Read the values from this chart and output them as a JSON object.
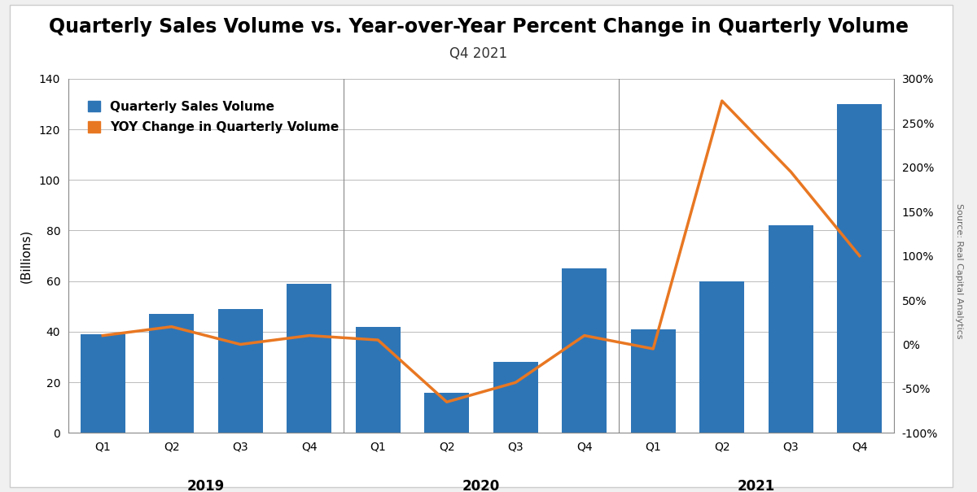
{
  "title": "Quarterly Sales Volume vs. Year-over-Year Percent Change in Quarterly Volume",
  "subtitle": "Q4 2021",
  "source": "Source: Real Capital Analytics",
  "categories": [
    "Q1",
    "Q2",
    "Q3",
    "Q4",
    "Q1",
    "Q2",
    "Q3",
    "Q4",
    "Q1",
    "Q2",
    "Q3",
    "Q4"
  ],
  "year_labels": [
    "2019",
    "2020",
    "2021"
  ],
  "bar_values": [
    39,
    47,
    49,
    59,
    42,
    16,
    28,
    65,
    41,
    60,
    82,
    130
  ],
  "yoy_values": [
    10,
    20,
    0,
    10,
    5,
    -65,
    -43,
    10,
    -5,
    275,
    195,
    100
  ],
  "bar_color": "#2E75B6",
  "line_color": "#E87722",
  "ylabel_left": "(Billions)",
  "ylim_left": [
    0,
    140
  ],
  "ylim_right": [
    -100,
    300
  ],
  "yticks_left": [
    0,
    20,
    40,
    60,
    80,
    100,
    120,
    140
  ],
  "yticks_right": [
    -100,
    -50,
    0,
    50,
    100,
    150,
    200,
    250,
    300
  ],
  "background_color": "#ffffff",
  "outer_background": "#f0f0f0",
  "legend_bar_label": "Quarterly Sales Volume",
  "legend_line_label": "YOY Change in Quarterly Volume",
  "title_fontsize": 17,
  "subtitle_fontsize": 12,
  "axis_fontsize": 11,
  "tick_fontsize": 10,
  "year_fontsize": 12,
  "divider_color": "#888888",
  "grid_color": "#bbbbbb",
  "source_color": "#666666"
}
